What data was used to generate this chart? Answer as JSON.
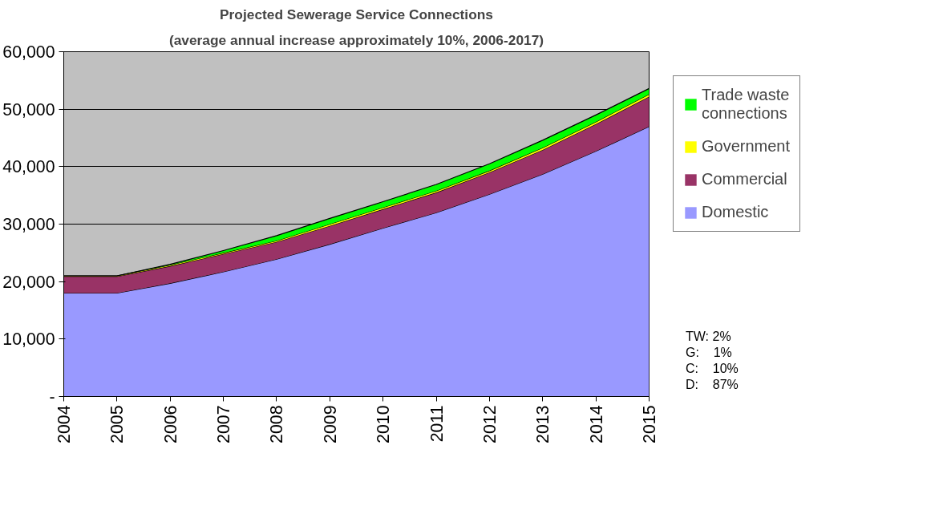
{
  "chart_data": {
    "type": "area",
    "stacked": true,
    "title": "Projected Sewerage Service Connections",
    "subtitle": "(average annual increase approximately 10%, 2006-2017)",
    "categories": [
      "2004",
      "2005",
      "2006",
      "2007",
      "2008",
      "2009",
      "2010",
      "2011",
      "2012",
      "2013",
      "2014",
      "2015"
    ],
    "series": [
      {
        "name": "Domestic",
        "color": "#9999ff",
        "values": [
          18000,
          18000,
          19700,
          21700,
          23900,
          26500,
          29300,
          32000,
          35200,
          38700,
          42700,
          47000
        ]
      },
      {
        "name": "Commercial",
        "color": "#993366",
        "values": [
          2900,
          2900,
          3000,
          3100,
          3000,
          3200,
          3300,
          3500,
          3800,
          4200,
          4700,
          5200
        ]
      },
      {
        "name": "Government",
        "color": "#ffff00",
        "values": [
          100,
          100,
          200,
          200,
          200,
          300,
          300,
          300,
          300,
          400,
          400,
          400
        ]
      },
      {
        "name": "Trade waste connections",
        "color": "#00ff00",
        "values": [
          0,
          0,
          100,
          400,
          900,
          1000,
          1000,
          1100,
          1200,
          1300,
          1200,
          1000
        ]
      }
    ],
    "ylim": [
      0,
      60000
    ],
    "yticks": [
      {
        "value": 0,
        "label": "-"
      },
      {
        "value": 10000,
        "label": "10,000"
      },
      {
        "value": 20000,
        "label": "20,000"
      },
      {
        "value": 30000,
        "label": "30,000"
      },
      {
        "value": 40000,
        "label": "40,000"
      },
      {
        "value": 50000,
        "label": "50,000"
      },
      {
        "value": 60000,
        "label": "60,000"
      }
    ],
    "grid": "y",
    "legend": "right",
    "annotations": [
      "TW: 2%",
      "G:    1%",
      "C:    10%",
      "D:    87%"
    ]
  }
}
